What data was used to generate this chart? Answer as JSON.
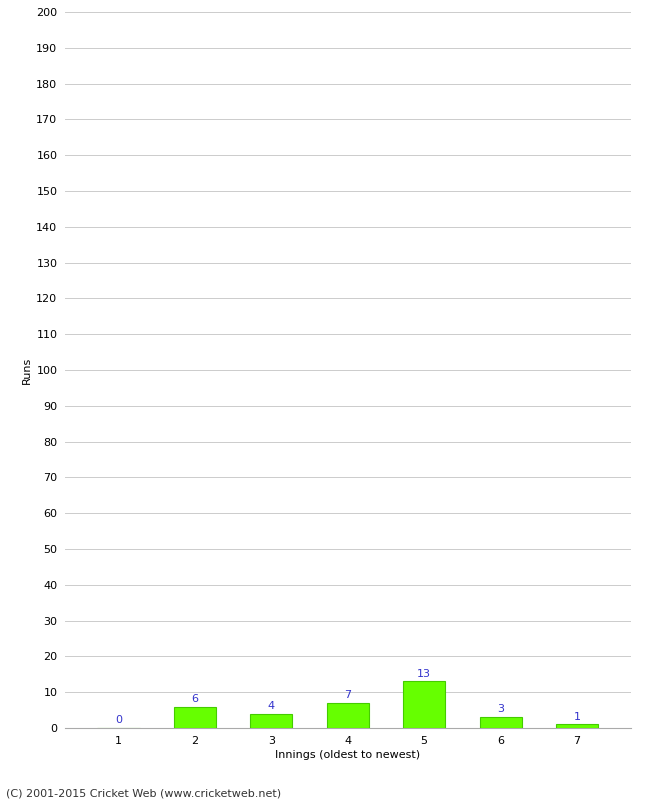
{
  "innings": [
    1,
    2,
    3,
    4,
    5,
    6,
    7
  ],
  "runs": [
    0,
    6,
    4,
    7,
    13,
    3,
    1
  ],
  "bar_color": "#66ff00",
  "bar_edge_color": "#44cc00",
  "label_color": "#3333cc",
  "ylabel": "Runs",
  "xlabel": "Innings (oldest to newest)",
  "ylim": [
    0,
    200
  ],
  "yticks": [
    0,
    10,
    20,
    30,
    40,
    50,
    60,
    70,
    80,
    90,
    100,
    110,
    120,
    130,
    140,
    150,
    160,
    170,
    180,
    190,
    200
  ],
  "footer": "(C) 2001-2015 Cricket Web (www.cricketweb.net)",
  "background_color": "#ffffff",
  "grid_color": "#cccccc",
  "label_fontsize": 8,
  "axis_fontsize": 8,
  "ylabel_fontsize": 8,
  "footer_fontsize": 8
}
